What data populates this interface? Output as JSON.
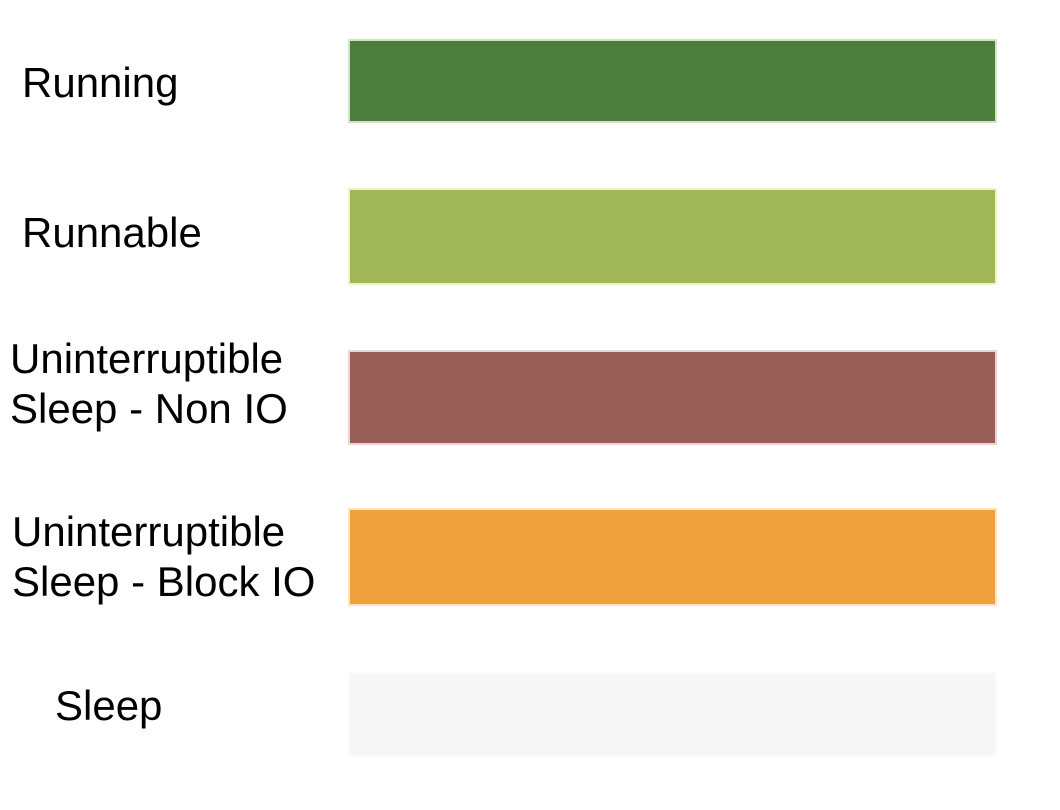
{
  "page": {
    "background": "#ffffff",
    "text_color": "#000000"
  },
  "legend": {
    "items": [
      {
        "label": "Running",
        "color": "#4b7e3d",
        "edge_color": "#d2e4c6"
      },
      {
        "label": "Runnable",
        "color": "#a1b656",
        "edge_color": "#ecf2d2"
      },
      {
        "label": "Uninterruptible Sleep - Non IO",
        "color": "#985f59",
        "edge_color": "#e9d6d3"
      },
      {
        "label": "Uninterruptible Sleep - Block IO",
        "color": "#f0a03c",
        "edge_color": "#fce5c2"
      },
      {
        "label": "Sleep",
        "color": "#f6f6f6",
        "edge_color": "#fbfbfb"
      }
    ]
  }
}
